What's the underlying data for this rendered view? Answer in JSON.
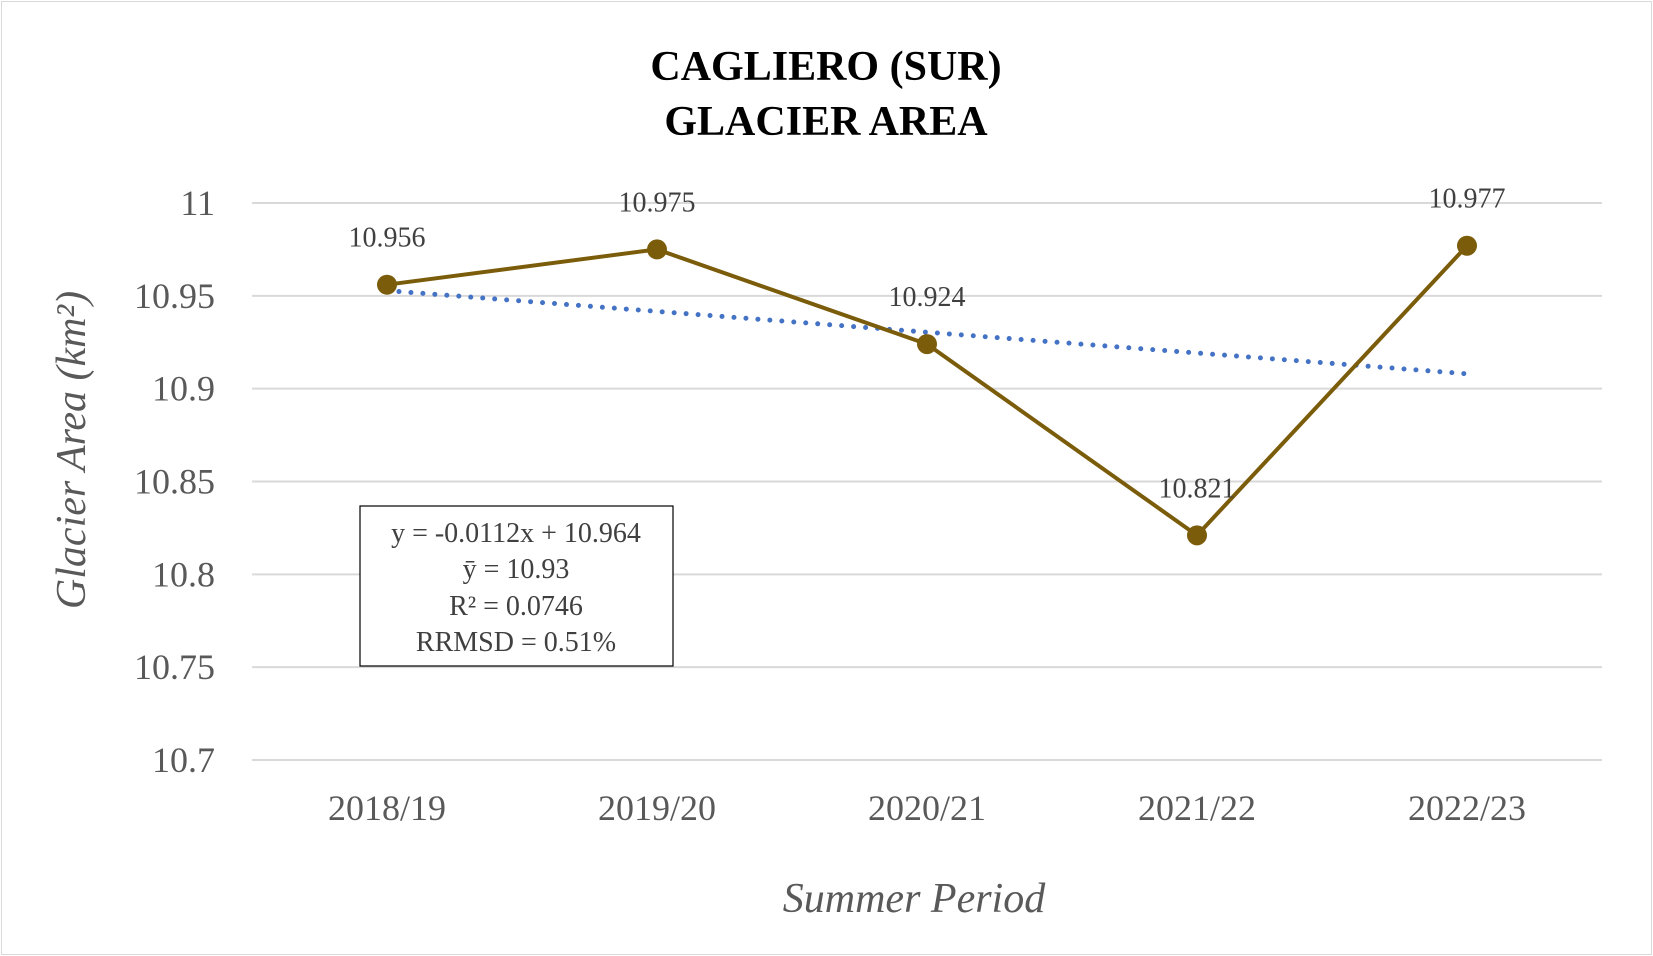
{
  "chart_data": {
    "type": "line",
    "title_lines": [
      "CAGLIERO (SUR)",
      "GLACIER AREA"
    ],
    "xlabel": "Summer Period",
    "ylabel": "Glacier Area (km²)",
    "categories": [
      "2018/19",
      "2019/20",
      "2020/21",
      "2021/22",
      "2022/23"
    ],
    "series": [
      {
        "values": [
          10.956,
          10.975,
          10.924,
          10.821,
          10.977
        ],
        "data_labels": [
          "10.956",
          "10.975",
          "10.924",
          "10.821",
          "10.977"
        ],
        "color": "#7a5c0a"
      }
    ],
    "trendline": {
      "type": "linear",
      "slope": -0.0112,
      "intercept": 10.964,
      "color": "#4472c4",
      "style": "dotted"
    },
    "y_ticks": [
      "11",
      "10.95",
      "10.9",
      "10.85",
      "10.8",
      "10.75",
      "10.7"
    ],
    "ylim": [
      10.7,
      11
    ],
    "grid": true,
    "legend": "none",
    "annotation": {
      "lines": [
        "y = -0.0112x + 10.964",
        "ȳ = 10.93",
        "R² = 0.0746",
        "RRMSD = 0.51%"
      ]
    }
  }
}
